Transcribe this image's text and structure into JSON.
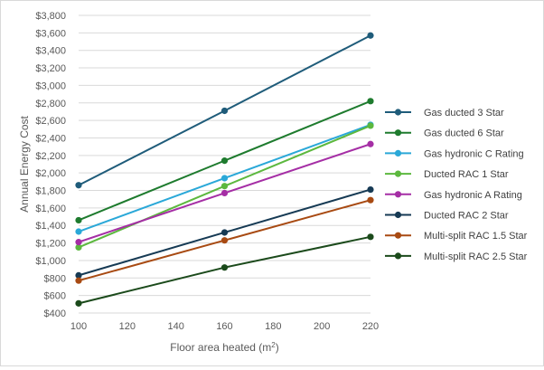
{
  "chart_data": {
    "type": "line",
    "xlabel": "Floor area heated (m²)",
    "ylabel": "Annual Energy Cost",
    "x": [
      100,
      160,
      220
    ],
    "xlim": [
      100,
      220
    ],
    "x_ticks": [
      "100",
      "120",
      "140",
      "160",
      "180",
      "200",
      "220"
    ],
    "ylim": [
      400,
      3800
    ],
    "y_ticks": [
      "$400",
      "$600",
      "$800",
      "$1,000",
      "$1,200",
      "$1,400",
      "$1,600",
      "$1,800",
      "$2,000",
      "$2,200",
      "$2,400",
      "$2,600",
      "$2,800",
      "$3,000",
      "$3,200",
      "$3,400",
      "$3,600",
      "$3,800"
    ],
    "grid": "horizontal",
    "legend_position": "right",
    "series": [
      {
        "name": "Gas ducted 3 Star",
        "color": "#1f5c7a",
        "values": [
          1860,
          2710,
          3570
        ]
      },
      {
        "name": "Gas ducted 6 Star",
        "color": "#1e7b2e",
        "values": [
          1460,
          2140,
          2820
        ]
      },
      {
        "name": "Gas hydronic C Rating",
        "color": "#2aa8d8",
        "values": [
          1330,
          1940,
          2550
        ]
      },
      {
        "name": "Ducted RAC 1 Star",
        "color": "#5cb83e",
        "values": [
          1150,
          1850,
          2540
        ]
      },
      {
        "name": "Gas hydronic A Rating",
        "color": "#a52ea5",
        "values": [
          1210,
          1770,
          2330
        ]
      },
      {
        "name": "Ducted RAC 2 Star",
        "color": "#163a54",
        "values": [
          830,
          1320,
          1810
        ]
      },
      {
        "name": "Multi-split RAC 1.5 Star",
        "color": "#a84a12",
        "values": [
          770,
          1230,
          1690
        ]
      },
      {
        "name": "Multi-split RAC 2.5 Star",
        "color": "#1b4a1b",
        "values": [
          510,
          920,
          1270
        ]
      }
    ]
  }
}
